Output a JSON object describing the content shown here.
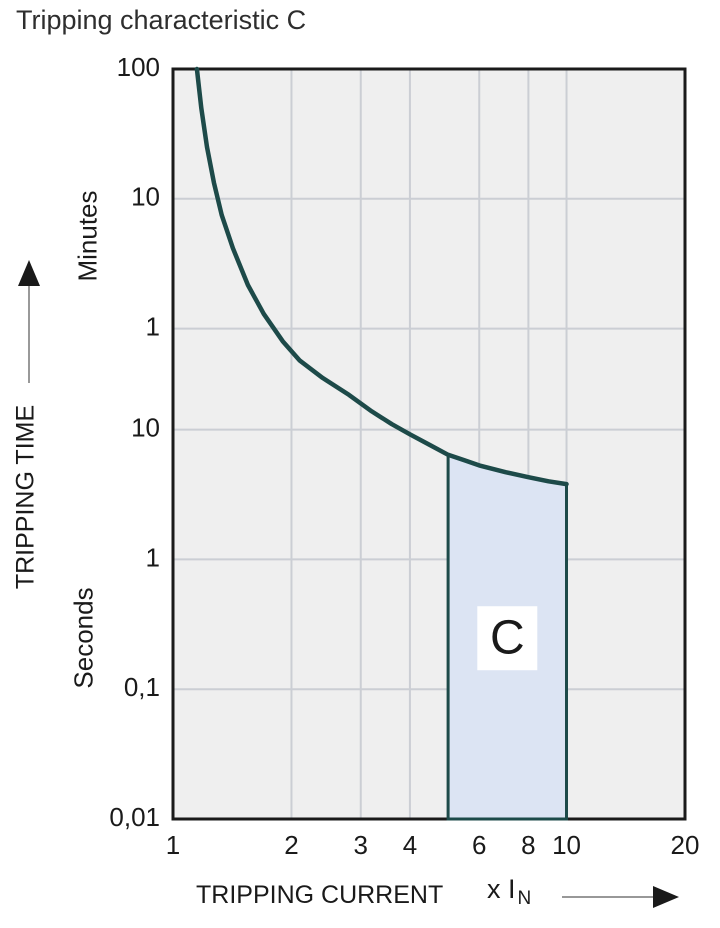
{
  "title": "Tripping characteristic C",
  "colors": {
    "curve": "#1d4a49",
    "region_fill": "#dce4f3",
    "region_label_bg": "#ffffff",
    "plot_bg": "#efefef",
    "grid": "#cbced4",
    "frame": "#1a1a1a",
    "text": "#1a1a1a",
    "arrow_line": "#777777",
    "arrow_head": "#1a1a1a"
  },
  "y_axis": {
    "label": "TRIPPING TIME",
    "unit_upper": "Minutes",
    "unit_lower": "Seconds"
  },
  "x_axis": {
    "label": "TRIPPING CURRENT",
    "multiplier_prefix": "x I",
    "multiplier_sub": "N"
  },
  "chart_data": {
    "type": "line",
    "x_scale": "log",
    "y_scale": "log",
    "x_range": [
      1,
      20
    ],
    "y_range_seconds": [
      0.01,
      6000
    ],
    "x_ticks": [
      {
        "value": 1,
        "label": "1"
      },
      {
        "value": 2,
        "label": "2"
      },
      {
        "value": 3,
        "label": "3"
      },
      {
        "value": 4,
        "label": "4"
      },
      {
        "value": 6,
        "label": "6"
      },
      {
        "value": 8,
        "label": "8"
      },
      {
        "value": 10,
        "label": "10"
      },
      {
        "value": 20,
        "label": "20"
      }
    ],
    "y_ticks": [
      {
        "seconds": 6000,
        "label": "100",
        "unit": "Minutes"
      },
      {
        "seconds": 600,
        "label": "10",
        "unit": "Minutes"
      },
      {
        "seconds": 60,
        "label": "1",
        "unit": "Minutes"
      },
      {
        "seconds": 10,
        "label": "10",
        "unit": "Seconds"
      },
      {
        "seconds": 1,
        "label": "1",
        "unit": "Seconds"
      },
      {
        "seconds": 0.1,
        "label": "0,1",
        "unit": "Seconds"
      },
      {
        "seconds": 0.01,
        "label": "0,01",
        "unit": "Seconds"
      }
    ],
    "grid_x_values": [
      2,
      3,
      4,
      6,
      8,
      10
    ],
    "grid_y_seconds": [
      600,
      60,
      10,
      1,
      0.1
    ],
    "curve": {
      "name": "tripping-curve",
      "points": [
        [
          1.15,
          6000
        ],
        [
          1.18,
          3000
        ],
        [
          1.22,
          1500
        ],
        [
          1.27,
          800
        ],
        [
          1.33,
          450
        ],
        [
          1.42,
          250
        ],
        [
          1.55,
          130
        ],
        [
          1.7,
          78
        ],
        [
          1.9,
          48
        ],
        [
          2.1,
          34
        ],
        [
          2.4,
          25
        ],
        [
          2.8,
          18.5
        ],
        [
          3.2,
          13.8
        ],
        [
          3.6,
          11
        ],
        [
          4.0,
          9.2
        ],
        [
          4.5,
          7.6
        ],
        [
          5.0,
          6.4
        ],
        [
          5.5,
          5.8
        ],
        [
          6.0,
          5.3
        ],
        [
          7.0,
          4.7
        ],
        [
          8.0,
          4.3
        ],
        [
          9.0,
          4.0
        ],
        [
          10.0,
          3.8
        ]
      ]
    },
    "region": {
      "label": "C",
      "x_from": 5,
      "x_to": 10,
      "bottom_seconds": 0.01
    }
  }
}
